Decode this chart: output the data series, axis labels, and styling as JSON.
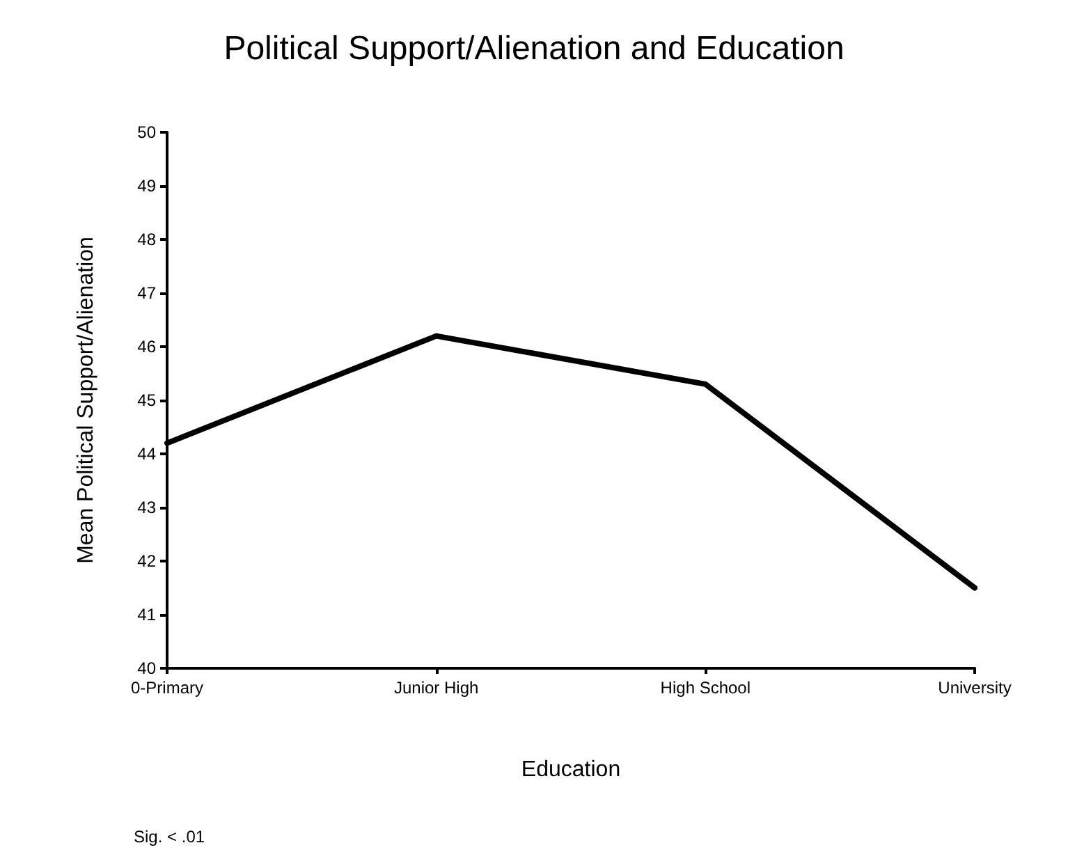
{
  "chart_data": {
    "type": "line",
    "title": "Political Support/Alienation and Education",
    "xlabel": "Education",
    "ylabel": "Mean Political Support/Alienation",
    "categories": [
      "0-Primary",
      "Junior High",
      "High School",
      "University"
    ],
    "series": [
      {
        "color": "#000000",
        "values": [
          44.2,
          46.2,
          45.3,
          41.5
        ]
      }
    ],
    "ylim": [
      40,
      50
    ],
    "yticks": [
      40,
      41,
      42,
      43,
      44,
      45,
      46,
      47,
      48,
      49,
      50
    ],
    "marker": "none",
    "line_style": "solid",
    "annotations": [
      "Sig. < .01"
    ]
  }
}
